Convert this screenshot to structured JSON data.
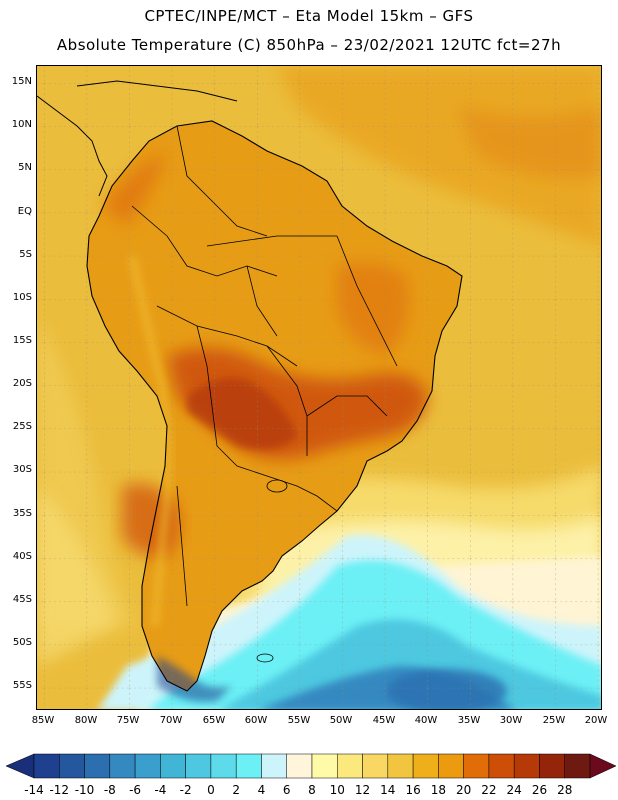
{
  "title_line1": "CPTEC/INPE/MCT –  Eta Model 15km – GFS",
  "title_line2": "Absolute Temperature (C) 850hPa – 23/02/2021 12UTC fct=27h",
  "lat_labels": [
    "15N",
    "10N",
    "5N",
    "EQ",
    "5S",
    "10S",
    "15S",
    "20S",
    "25S",
    "30S",
    "35S",
    "40S",
    "45S",
    "50S",
    "55S"
  ],
  "lon_labels": [
    "85W",
    "80W",
    "75W",
    "70W",
    "65W",
    "60W",
    "55W",
    "50W",
    "45W",
    "40W",
    "35W",
    "30W",
    "25W",
    "20W"
  ],
  "colorbar": {
    "labels": [
      "-14",
      "-12",
      "-10",
      "-8",
      "-6",
      "-4",
      "-2",
      "0",
      "2",
      "4",
      "6",
      "8",
      "10",
      "12",
      "14",
      "16",
      "18",
      "20",
      "22",
      "24",
      "26",
      "28"
    ],
    "colors": [
      "#1f3f8f",
      "#25579f",
      "#2b6fb0",
      "#3589c1",
      "#3a9fcc",
      "#41b5d6",
      "#4ec8e0",
      "#5ddbeb",
      "#6cf0f5",
      "#cdf4fb",
      "#fff5da",
      "#fffaa8",
      "#fbe97d",
      "#f8d862",
      "#f2c540",
      "#eeaf1b",
      "#ec9a10",
      "#e06d08",
      "#cc4e07",
      "#b53a07",
      "#94250b",
      "#6e1a10"
    ],
    "under_color": "#1a2f7a",
    "over_color": "#6a0a1c"
  },
  "map": {
    "ocean_base_color": "#ebbd3c",
    "land_color": "#e79c16"
  }
}
